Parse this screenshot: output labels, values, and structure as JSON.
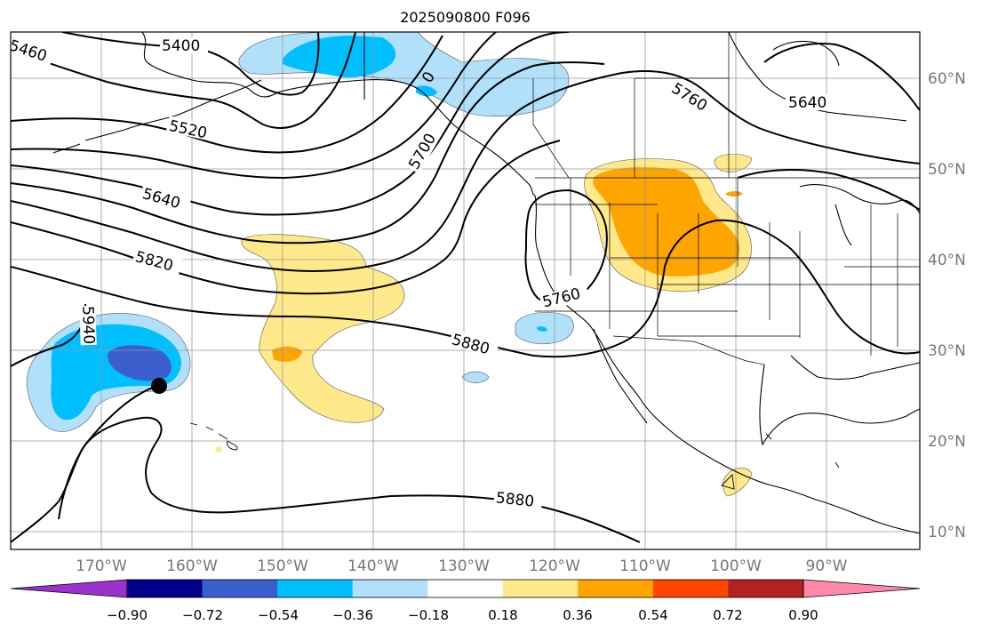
{
  "title": "2025090800 F096",
  "lat_labels": [
    "60°N",
    "50°N",
    "40°N",
    "30°N",
    "20°N",
    "10°N"
  ],
  "lon_labels": [
    "170°W",
    "160°W",
    "150°W",
    "140°W",
    "130°W",
    "120°W",
    "110°W",
    "100°W",
    "90°W"
  ],
  "contour_labels": [
    "5400",
    "5460",
    "5520",
    "5640",
    "5820",
    "5940",
    "5700",
    "0",
    "5760",
    "5640",
    "5760",
    "5880",
    "5880"
  ],
  "colorbar": {
    "ticks": [
      "−0.90",
      "−0.72",
      "−0.54",
      "−0.36",
      "−0.18",
      "0.18",
      "0.36",
      "0.54",
      "0.72",
      "0.90"
    ],
    "colors": [
      "#9933cc",
      "#00008b",
      "#3a5fcd",
      "#00bfff",
      "#b0e0fa",
      "#ffffff",
      "#ffe98a",
      "#ffa500",
      "#ff4500",
      "#b22222",
      "#ff88aa"
    ]
  },
  "shading_colors": {
    "light_blue": "#b0e0fa",
    "blue": "#00bfff",
    "royal_blue": "#3a5fcd",
    "yellow": "#ffe98a",
    "orange": "#ffa500"
  }
}
